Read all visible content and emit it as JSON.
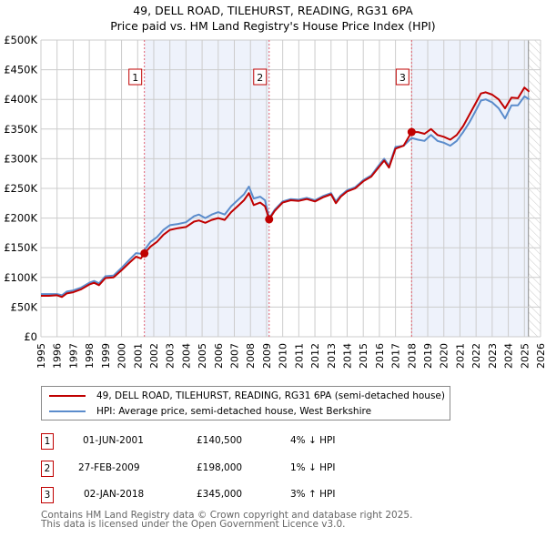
{
  "header": {
    "title": "49, DELL ROAD, TILEHURST, READING, RG31 6PA",
    "subtitle": "Price paid vs. HM Land Registry's House Price Index (HPI)"
  },
  "colors": {
    "price_paid": "#c00000",
    "hpi": "#5b8ccc",
    "shade": "#eef2fb",
    "grid": "#cccccc",
    "marker_line": "#e06070"
  },
  "chart_data": {
    "type": "line",
    "title": "49, DELL ROAD, TILEHURST, READING, RG31 6PA — Price paid vs. HM Land Registry's House Price Index (HPI)",
    "xlabel": "",
    "ylabel": "",
    "xlim": [
      1995,
      2026
    ],
    "ylim": [
      0,
      500000
    ],
    "grid": true,
    "legend_position": "below",
    "x_ticks": [
      "1995",
      "1996",
      "1997",
      "1998",
      "1999",
      "2000",
      "2001",
      "2002",
      "2003",
      "2004",
      "2005",
      "2006",
      "2007",
      "2008",
      "2009",
      "2010",
      "2011",
      "2012",
      "2013",
      "2014",
      "2015",
      "2016",
      "2017",
      "2018",
      "2019",
      "2020",
      "2021",
      "2022",
      "2023",
      "2024",
      "2025",
      "2026"
    ],
    "y_ticks": [
      {
        "value": 0,
        "label": "£0"
      },
      {
        "value": 50000,
        "label": "£50K"
      },
      {
        "value": 100000,
        "label": "£100K"
      },
      {
        "value": 150000,
        "label": "£150K"
      },
      {
        "value": 200000,
        "label": "£200K"
      },
      {
        "value": 250000,
        "label": "£250K"
      },
      {
        "value": 300000,
        "label": "£300K"
      },
      {
        "value": 350000,
        "label": "£350K"
      },
      {
        "value": 400000,
        "label": "£400K"
      },
      {
        "value": 450000,
        "label": "£450K"
      },
      {
        "value": 500000,
        "label": "£500K"
      }
    ],
    "shaded_ranges": [
      [
        2001.42,
        2009.16
      ],
      [
        2018.0,
        2025.25
      ]
    ],
    "forecast_hatch_from": 2025.25,
    "series": [
      {
        "name": "49, DELL ROAD, TILEHURST, READING, RG31 6PA (semi-detached house)",
        "key": "price_paid",
        "x": [
          1995.0,
          1995.5,
          1996.0,
          1996.3,
          1996.6,
          1997.0,
          1997.5,
          1998.0,
          1998.3,
          1998.6,
          1999.0,
          1999.5,
          2000.0,
          2000.5,
          2000.9,
          2001.2,
          2001.42,
          2001.8,
          2002.2,
          2002.6,
          2003.0,
          2003.5,
          2004.0,
          2004.5,
          2004.8,
          2005.2,
          2005.6,
          2006.0,
          2006.4,
          2006.8,
          2007.2,
          2007.6,
          2007.9,
          2008.2,
          2008.6,
          2008.9,
          2009.16,
          2009.5,
          2010.0,
          2010.5,
          2011.0,
          2011.5,
          2012.0,
          2012.5,
          2013.0,
          2013.3,
          2013.6,
          2014.0,
          2014.5,
          2015.0,
          2015.5,
          2016.0,
          2016.3,
          2016.6,
          2017.0,
          2017.5,
          2018.0,
          2018.4,
          2018.8,
          2019.2,
          2019.6,
          2020.0,
          2020.4,
          2020.8,
          2021.2,
          2021.6,
          2022.0,
          2022.3,
          2022.6,
          2023.0,
          2023.4,
          2023.8,
          2024.2,
          2024.6,
          2025.0,
          2025.3
        ],
        "values": [
          69000,
          69000,
          70000,
          67000,
          73000,
          75000,
          80000,
          88000,
          91000,
          87000,
          99000,
          100000,
          112000,
          125000,
          135000,
          132000,
          140500,
          152000,
          160000,
          172000,
          180000,
          183000,
          185000,
          194000,
          196000,
          192000,
          197000,
          200000,
          197000,
          210000,
          220000,
          230000,
          242000,
          222000,
          226000,
          220000,
          198000,
          212000,
          226000,
          230000,
          229000,
          232000,
          228000,
          235000,
          240000,
          225000,
          236000,
          245000,
          250000,
          262000,
          270000,
          287000,
          297000,
          285000,
          317000,
          322000,
          345000,
          345000,
          342000,
          350000,
          340000,
          337000,
          332000,
          340000,
          355000,
          375000,
          395000,
          410000,
          412000,
          408000,
          400000,
          385000,
          403000,
          402000,
          420000,
          413000
        ]
      },
      {
        "name": "HPI: Average price, semi-detached house, West Berkshire",
        "key": "hpi",
        "x": [
          1995.0,
          1995.5,
          1996.0,
          1996.3,
          1996.6,
          1997.0,
          1997.5,
          1998.0,
          1998.3,
          1998.6,
          1999.0,
          1999.5,
          2000.0,
          2000.5,
          2000.9,
          2001.2,
          2001.42,
          2001.8,
          2002.2,
          2002.6,
          2003.0,
          2003.5,
          2004.0,
          2004.5,
          2004.8,
          2005.2,
          2005.6,
          2006.0,
          2006.4,
          2006.8,
          2007.2,
          2007.6,
          2007.9,
          2008.2,
          2008.6,
          2008.9,
          2009.16,
          2009.5,
          2010.0,
          2010.5,
          2011.0,
          2011.5,
          2012.0,
          2012.5,
          2013.0,
          2013.3,
          2013.6,
          2014.0,
          2014.5,
          2015.0,
          2015.5,
          2016.0,
          2016.3,
          2016.6,
          2017.0,
          2017.5,
          2018.0,
          2018.4,
          2018.8,
          2019.2,
          2019.6,
          2020.0,
          2020.4,
          2020.8,
          2021.2,
          2021.6,
          2022.0,
          2022.3,
          2022.6,
          2023.0,
          2023.4,
          2023.8,
          2024.2,
          2024.6,
          2025.0,
          2025.3
        ],
        "values": [
          72000,
          72000,
          72000,
          70000,
          76000,
          78000,
          83000,
          91000,
          94000,
          90000,
          102000,
          103000,
          116000,
          130000,
          141000,
          140000,
          146000,
          160000,
          168000,
          180000,
          188000,
          190000,
          193000,
          203000,
          206000,
          200000,
          206000,
          210000,
          206000,
          220000,
          230000,
          240000,
          253000,
          233000,
          236000,
          230000,
          200000,
          214000,
          228000,
          232000,
          231000,
          234000,
          230000,
          237000,
          242000,
          228000,
          238000,
          247000,
          252000,
          264000,
          272000,
          290000,
          300000,
          288000,
          320000,
          322000,
          335000,
          332000,
          330000,
          340000,
          330000,
          327000,
          322000,
          330000,
          345000,
          362000,
          382000,
          398000,
          400000,
          395000,
          385000,
          368000,
          390000,
          390000,
          405000,
          400000
        ]
      }
    ],
    "annotations": [
      {
        "label": "1",
        "x": 2001.42,
        "value": 140500
      },
      {
        "label": "2",
        "x": 2009.16,
        "value": 198000
      },
      {
        "label": "3",
        "x": 2018.0,
        "value": 345000
      }
    ]
  },
  "legend": {
    "items": [
      {
        "label": "49, DELL ROAD, TILEHURST, READING, RG31 6PA (semi-detached house)",
        "color_key": "price_paid"
      },
      {
        "label": "HPI: Average price, semi-detached house, West Berkshire",
        "color_key": "hpi"
      }
    ]
  },
  "transactions": [
    {
      "num": "1",
      "date": "01-JUN-2001",
      "price": "£140,500",
      "hpi_change": "4% ↓ HPI"
    },
    {
      "num": "2",
      "date": "27-FEB-2009",
      "price": "£198,000",
      "hpi_change": "1% ↓ HPI"
    },
    {
      "num": "3",
      "date": "02-JAN-2018",
      "price": "£345,000",
      "hpi_change": "3% ↑ HPI"
    }
  ],
  "footer": {
    "line1": "Contains HM Land Registry data © Crown copyright and database right 2025.",
    "line2": "This data is licensed under the Open Government Licence v3.0."
  }
}
